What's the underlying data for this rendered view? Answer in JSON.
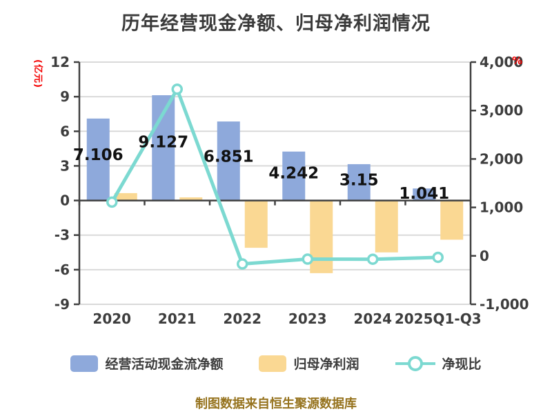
{
  "title": "历年经营现金净额、归母净利润情况",
  "footer": "制图数据来自恒生聚源数据库",
  "colors": {
    "bar_cashflow": "#8EA9DB",
    "bar_profit": "#FAD893",
    "line_ratio": "#7CD9D1",
    "axis_unit_red": "#F40000",
    "axis_text": "#3D3D3D",
    "grid": "#D9D9D9",
    "axis_line": "#404040",
    "value_label": "#111111",
    "title_text": "#3A3A3A",
    "footer_text": "#96731E"
  },
  "legend": {
    "items": [
      {
        "label": "经营活动现金流净额",
        "type": "bar"
      },
      {
        "label": "归母净利润",
        "type": "bar"
      },
      {
        "label": "净现比",
        "type": "line"
      }
    ]
  },
  "chart_data": {
    "type": "bar",
    "subtype": "bar+line combo, dual y-axis",
    "categories": [
      "2020",
      "2021",
      "2022",
      "2023",
      "2024",
      "2025Q1-Q3"
    ],
    "series": [
      {
        "name": "经营活动现金流净额",
        "type": "bar",
        "axis": "left",
        "values": [
          7.106,
          9.127,
          6.851,
          4.242,
          3.15,
          1.041
        ],
        "labels": [
          "7.106",
          "9.127",
          "6.851",
          "4.242",
          "3.15",
          "1.041"
        ]
      },
      {
        "name": "归母净利润",
        "type": "bar",
        "axis": "left",
        "values": [
          0.64,
          0.27,
          -4.1,
          -6.3,
          -4.5,
          -3.4
        ]
      },
      {
        "name": "净现比",
        "type": "line",
        "axis": "right",
        "values": [
          1110,
          3440,
          -167,
          -67,
          -70,
          -31
        ]
      }
    ],
    "left_axis": {
      "unit": "(亿元)",
      "min": -9,
      "max": 12,
      "ticks": [
        "12",
        "9",
        "6",
        "3",
        "0",
        "-3",
        "-6",
        "-9"
      ],
      "tick_values": [
        12,
        9,
        6,
        3,
        0,
        -3,
        -6,
        -9
      ]
    },
    "right_axis": {
      "unit": "%",
      "min": -1000,
      "max": 4000,
      "ticks": [
        "4,000",
        "3,000",
        "2,000",
        "1,000",
        "0",
        "-1,000"
      ],
      "tick_values": [
        4000,
        3000,
        2000,
        1000,
        0,
        -1000
      ]
    },
    "grid": true,
    "legend_position": "bottom"
  }
}
